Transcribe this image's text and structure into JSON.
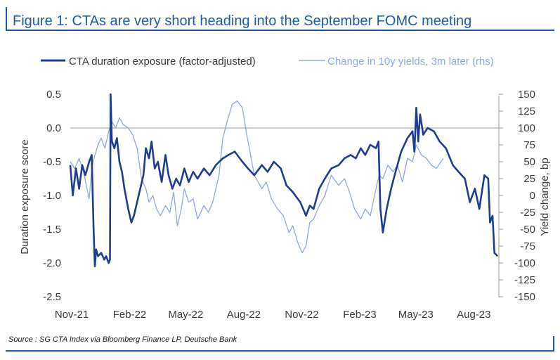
{
  "title": "Figure 1: CTAs are very short heading into the September FOMC meeting",
  "source": "Source : SG CTA Index via Bloomberg Finance LP, Deutsche Bank",
  "chart_data": {
    "type": "line",
    "x_tick_labels": [
      "Nov-21",
      "Feb-22",
      "May-22",
      "Aug-22",
      "Nov-22",
      "Feb-23",
      "May-23",
      "Aug-23"
    ],
    "x_range": [
      "2021-11",
      "2023-09"
    ],
    "ylabel_left": "Duration exposure score",
    "ylabel_right": "Yield change, bp",
    "ylim_left": [
      -2.5,
      0.5
    ],
    "ylim_right": [
      -150,
      150
    ],
    "left_ticks": [
      "0.5",
      "0.0",
      "-0.5",
      "-1.0",
      "-1.5",
      "-2.0",
      "-2.5"
    ],
    "right_ticks": [
      "150",
      "125",
      "100",
      "75",
      "50",
      "25",
      "0",
      "-25",
      "-50",
      "-75",
      "-100",
      "-125",
      "-150"
    ],
    "legend_position": "top",
    "grid": false,
    "series": [
      {
        "name": "CTA duration exposure (factor-adjusted)",
        "axis": "left",
        "color": "#1f3c8f",
        "points": [
          [
            "2021-11-01",
            -0.55
          ],
          [
            "2021-11-05",
            -1.0
          ],
          [
            "2021-11-10",
            -0.6
          ],
          [
            "2021-11-15",
            -0.9
          ],
          [
            "2021-11-20",
            -0.55
          ],
          [
            "2021-11-25",
            -0.7
          ],
          [
            "2021-12-01",
            -0.5
          ],
          [
            "2021-12-05",
            -0.4
          ],
          [
            "2021-12-08",
            -1.5
          ],
          [
            "2021-12-10",
            -2.05
          ],
          [
            "2021-12-12",
            -1.8
          ],
          [
            "2021-12-15",
            -1.9
          ],
          [
            "2021-12-20",
            -1.85
          ],
          [
            "2021-12-25",
            -1.95
          ],
          [
            "2021-12-28",
            -1.9
          ],
          [
            "2022-01-01",
            -2.0
          ],
          [
            "2022-01-03",
            -1.95
          ],
          [
            "2022-01-04",
            0.5
          ],
          [
            "2022-01-06",
            -0.2
          ],
          [
            "2022-01-10",
            -0.3
          ],
          [
            "2022-01-14",
            -0.15
          ],
          [
            "2022-01-18",
            -0.5
          ],
          [
            "2022-01-22",
            -0.65
          ],
          [
            "2022-01-26",
            -0.9
          ],
          [
            "2022-02-01",
            -1.2
          ],
          [
            "2022-02-06",
            -1.4
          ],
          [
            "2022-02-10",
            -1.3
          ],
          [
            "2022-02-15",
            -1.1
          ],
          [
            "2022-02-20",
            -0.9
          ],
          [
            "2022-02-25",
            -0.7
          ],
          [
            "2022-03-01",
            -0.3
          ],
          [
            "2022-03-06",
            -0.45
          ],
          [
            "2022-03-10",
            -0.2
          ],
          [
            "2022-03-15",
            -0.6
          ],
          [
            "2022-03-20",
            -0.5
          ],
          [
            "2022-03-26",
            -0.8
          ],
          [
            "2022-04-01",
            -0.4
          ],
          [
            "2022-04-06",
            -0.7
          ],
          [
            "2022-04-12",
            -0.9
          ],
          [
            "2022-04-18",
            -0.75
          ],
          [
            "2022-04-24",
            -0.85
          ],
          [
            "2022-05-01",
            -0.6
          ],
          [
            "2022-05-08",
            -0.8
          ],
          [
            "2022-05-15",
            -0.65
          ],
          [
            "2022-05-22",
            -0.75
          ],
          [
            "2022-06-01",
            -0.6
          ],
          [
            "2022-06-10",
            -0.7
          ],
          [
            "2022-06-20",
            -0.55
          ],
          [
            "2022-07-01",
            -0.45
          ],
          [
            "2022-07-10",
            -0.4
          ],
          [
            "2022-07-20",
            -0.35
          ],
          [
            "2022-08-01",
            -0.5
          ],
          [
            "2022-08-10",
            -0.6
          ],
          [
            "2022-08-20",
            -0.7
          ],
          [
            "2022-09-01",
            -0.55
          ],
          [
            "2022-09-10",
            -0.65
          ],
          [
            "2022-09-20",
            -0.5
          ],
          [
            "2022-10-01",
            -0.6
          ],
          [
            "2022-10-10",
            -0.85
          ],
          [
            "2022-10-20",
            -0.95
          ],
          [
            "2022-11-01",
            -1.1
          ],
          [
            "2022-11-10",
            -1.3
          ],
          [
            "2022-11-16",
            -1.15
          ],
          [
            "2022-11-22",
            -1.2
          ],
          [
            "2022-12-01",
            -0.9
          ],
          [
            "2022-12-10",
            -0.75
          ],
          [
            "2022-12-20",
            -0.6
          ],
          [
            "2023-01-01",
            -0.55
          ],
          [
            "2023-01-10",
            -0.45
          ],
          [
            "2023-01-20",
            -0.4
          ],
          [
            "2023-01-28",
            -0.45
          ],
          [
            "2023-02-05",
            -0.3
          ],
          [
            "2023-02-12",
            -0.4
          ],
          [
            "2023-02-20",
            -0.25
          ],
          [
            "2023-03-01",
            -0.3
          ],
          [
            "2023-03-05",
            -0.2
          ],
          [
            "2023-03-08",
            -1.2
          ],
          [
            "2023-03-12",
            -1.55
          ],
          [
            "2023-03-18",
            -1.2
          ],
          [
            "2023-03-25",
            -0.9
          ],
          [
            "2023-04-01",
            -0.65
          ],
          [
            "2023-04-10",
            -0.35
          ],
          [
            "2023-04-20",
            -0.15
          ],
          [
            "2023-04-28",
            -0.05
          ],
          [
            "2023-05-01",
            -0.35
          ],
          [
            "2023-05-04",
            0.3
          ],
          [
            "2023-05-07",
            -0.2
          ],
          [
            "2023-05-10",
            0.2
          ],
          [
            "2023-05-15",
            -0.1
          ],
          [
            "2023-05-22",
            0.0
          ],
          [
            "2023-06-01",
            -0.05
          ],
          [
            "2023-06-10",
            -0.2
          ],
          [
            "2023-06-20",
            -0.3
          ],
          [
            "2023-07-01",
            -0.55
          ],
          [
            "2023-07-10",
            -0.65
          ],
          [
            "2023-07-20",
            -0.75
          ],
          [
            "2023-07-28",
            -1.1
          ],
          [
            "2023-08-05",
            -0.9
          ],
          [
            "2023-08-12",
            -1.2
          ],
          [
            "2023-08-20",
            -0.7
          ],
          [
            "2023-08-26",
            -0.75
          ],
          [
            "2023-08-29",
            -1.4
          ],
          [
            "2023-09-02",
            -1.3
          ],
          [
            "2023-09-05",
            -1.85
          ],
          [
            "2023-09-10",
            -1.9
          ]
        ]
      },
      {
        "name": "Change in 10y yields, 3m later (rhs)",
        "axis": "right",
        "color": "#8eaadb",
        "points": [
          [
            "2021-11-01",
            50
          ],
          [
            "2021-11-08",
            40
          ],
          [
            "2021-11-15",
            55
          ],
          [
            "2021-11-22",
            35
          ],
          [
            "2021-12-01",
            -5
          ],
          [
            "2021-12-05",
            40
          ],
          [
            "2021-12-10",
            60
          ],
          [
            "2021-12-15",
            75
          ],
          [
            "2021-12-20",
            85
          ],
          [
            "2021-12-26",
            70
          ],
          [
            "2022-01-01",
            95
          ],
          [
            "2022-01-06",
            110
          ],
          [
            "2022-01-12",
            100
          ],
          [
            "2022-01-18",
            115
          ],
          [
            "2022-01-24",
            105
          ],
          [
            "2022-02-01",
            100
          ],
          [
            "2022-02-08",
            90
          ],
          [
            "2022-02-15",
            70
          ],
          [
            "2022-02-22",
            25
          ],
          [
            "2022-03-01",
            10
          ],
          [
            "2022-03-06",
            -10
          ],
          [
            "2022-03-12",
            0
          ],
          [
            "2022-03-18",
            -20
          ],
          [
            "2022-03-24",
            -30
          ],
          [
            "2022-04-01",
            -15
          ],
          [
            "2022-04-08",
            -25
          ],
          [
            "2022-04-14",
            5
          ],
          [
            "2022-04-20",
            -45
          ],
          [
            "2022-04-26",
            -20
          ],
          [
            "2022-05-01",
            10
          ],
          [
            "2022-05-08",
            -10
          ],
          [
            "2022-05-15",
            -5
          ],
          [
            "2022-05-22",
            -35
          ],
          [
            "2022-06-01",
            -15
          ],
          [
            "2022-06-08",
            -25
          ],
          [
            "2022-06-15",
            -10
          ],
          [
            "2022-06-25",
            30
          ],
          [
            "2022-07-01",
            85
          ],
          [
            "2022-07-08",
            110
          ],
          [
            "2022-07-16",
            135
          ],
          [
            "2022-07-24",
            140
          ],
          [
            "2022-08-01",
            130
          ],
          [
            "2022-08-08",
            90
          ],
          [
            "2022-08-14",
            60
          ],
          [
            "2022-08-20",
            30
          ],
          [
            "2022-09-01",
            10
          ],
          [
            "2022-09-08",
            20
          ],
          [
            "2022-09-16",
            -5
          ],
          [
            "2022-09-26",
            -20
          ],
          [
            "2022-10-05",
            -30
          ],
          [
            "2022-10-14",
            -55
          ],
          [
            "2022-10-20",
            -45
          ],
          [
            "2022-10-28",
            -70
          ],
          [
            "2022-11-04",
            -85
          ],
          [
            "2022-11-10",
            -75
          ],
          [
            "2022-11-16",
            -40
          ],
          [
            "2022-11-22",
            -35
          ],
          [
            "2022-12-01",
            -15
          ],
          [
            "2022-12-10",
            0
          ],
          [
            "2022-12-20",
            30
          ],
          [
            "2023-01-01",
            15
          ],
          [
            "2023-01-10",
            25
          ],
          [
            "2023-01-18",
            5
          ],
          [
            "2023-01-26",
            -20
          ],
          [
            "2023-02-05",
            -35
          ],
          [
            "2023-02-12",
            -20
          ],
          [
            "2023-02-20",
            -30
          ],
          [
            "2023-03-01",
            10
          ],
          [
            "2023-03-06",
            30
          ],
          [
            "2023-03-12",
            25
          ],
          [
            "2023-03-20",
            45
          ],
          [
            "2023-03-28",
            35
          ],
          [
            "2023-04-04",
            45
          ],
          [
            "2023-04-12",
            20
          ],
          [
            "2023-04-20",
            55
          ],
          [
            "2023-04-28",
            50
          ],
          [
            "2023-05-04",
            75
          ],
          [
            "2023-05-12",
            60
          ],
          [
            "2023-05-20",
            55
          ],
          [
            "2023-05-28",
            45
          ],
          [
            "2023-06-05",
            40
          ],
          [
            "2023-06-12",
            50
          ],
          [
            "2023-06-16",
            55
          ]
        ]
      }
    ]
  }
}
